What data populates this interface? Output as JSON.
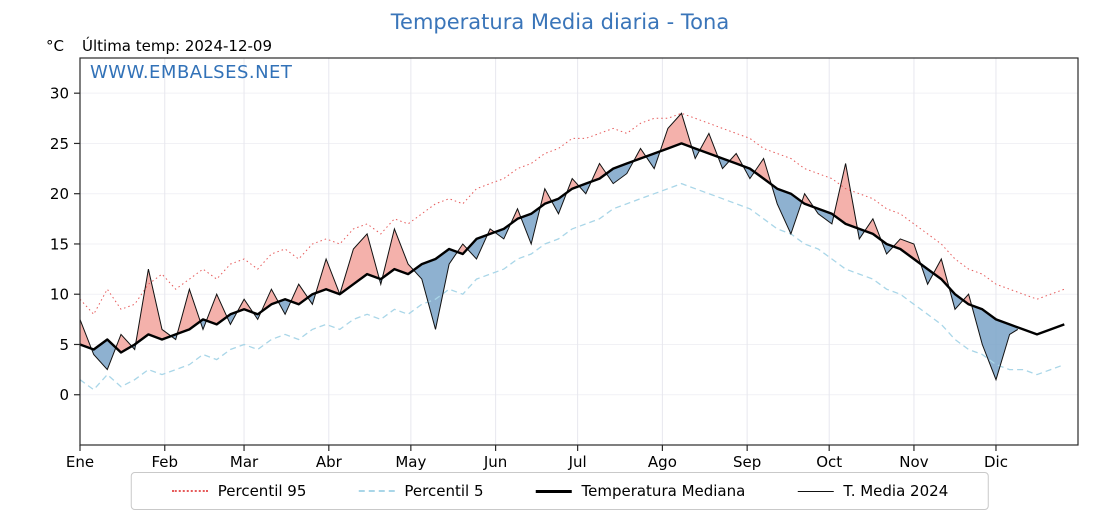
{
  "page": {
    "title": "Temperatura Media diaria - Tona",
    "unit_label": "°C",
    "last_temp_label": "Última temp: 2024-12-09",
    "watermark": "WWW.EMBALSES.NET"
  },
  "colors": {
    "title": "#3a75b9",
    "watermark": "#3272b8",
    "axis_text": "#000000",
    "grid_vertical": "#e7e7ee",
    "grid_horizontal": "#f1f1f5",
    "spine": "#2a2a2a",
    "fill_above": "#f2a39c",
    "fill_below": "#7aa3c8"
  },
  "chart_data": {
    "type": "line",
    "title": "Temperatura Media diaria - Tona",
    "ylabel": "°C",
    "legend_position": "bottom",
    "x_unit": "day_of_year",
    "xlim": [
      1,
      366
    ],
    "ylim": [
      -5,
      33.5
    ],
    "y_ticks": [
      0,
      5,
      10,
      15,
      20,
      25,
      30
    ],
    "months": [
      "Ene",
      "Feb",
      "Mar",
      "Abr",
      "May",
      "Jun",
      "Jul",
      "Ago",
      "Sep",
      "Oct",
      "Nov",
      "Dic"
    ],
    "month_start_days": [
      1,
      32,
      61,
      92,
      122,
      153,
      183,
      214,
      245,
      275,
      306,
      336
    ],
    "grid": true,
    "x_days": [
      1,
      6,
      11,
      16,
      21,
      26,
      31,
      36,
      41,
      46,
      51,
      56,
      61,
      66,
      71,
      76,
      81,
      86,
      91,
      96,
      101,
      106,
      111,
      116,
      121,
      126,
      131,
      136,
      141,
      146,
      151,
      156,
      161,
      166,
      171,
      176,
      181,
      186,
      191,
      196,
      201,
      206,
      211,
      216,
      221,
      226,
      231,
      236,
      241,
      246,
      251,
      256,
      261,
      266,
      271,
      276,
      281,
      286,
      291,
      296,
      301,
      306,
      311,
      316,
      321,
      326,
      331,
      336,
      341,
      346,
      351,
      356,
      361
    ],
    "series": [
      {
        "name": "Percentil 95",
        "color": "#e65a5a",
        "style": "dotted",
        "width": 1,
        "values": [
          9.5,
          8.0,
          10.5,
          8.5,
          9.0,
          11.0,
          12.0,
          10.5,
          11.5,
          12.5,
          11.5,
          13.0,
          13.5,
          12.5,
          14.0,
          14.5,
          13.5,
          15.0,
          15.5,
          15.0,
          16.5,
          17.0,
          16.0,
          17.5,
          17.0,
          18.0,
          19.0,
          19.5,
          19.0,
          20.5,
          21.0,
          21.5,
          22.5,
          23.0,
          24.0,
          24.5,
          25.5,
          25.5,
          26.0,
          26.5,
          26.0,
          27.0,
          27.5,
          27.5,
          28.0,
          27.5,
          27.0,
          26.5,
          26.0,
          25.5,
          24.5,
          24.0,
          23.5,
          22.5,
          22.0,
          21.5,
          20.5,
          20.0,
          19.5,
          18.5,
          18.0,
          17.0,
          16.0,
          15.0,
          13.5,
          12.5,
          12.0,
          11.0,
          10.5,
          10.0,
          9.5,
          10.0,
          10.5
        ]
      },
      {
        "name": "Percentil 5",
        "color": "#a9d6e8",
        "style": "dashed",
        "width": 1.3,
        "values": [
          1.5,
          0.5,
          2.0,
          0.8,
          1.5,
          2.5,
          2.0,
          2.5,
          3.0,
          4.0,
          3.5,
          4.5,
          5.0,
          4.5,
          5.5,
          6.0,
          5.5,
          6.5,
          7.0,
          6.5,
          7.5,
          8.0,
          7.5,
          8.5,
          8.0,
          9.0,
          9.5,
          10.5,
          10.0,
          11.5,
          12.0,
          12.5,
          13.5,
          14.0,
          15.0,
          15.5,
          16.5,
          17.0,
          17.5,
          18.5,
          19.0,
          19.5,
          20.0,
          20.5,
          21.0,
          20.5,
          20.0,
          19.5,
          19.0,
          18.5,
          17.5,
          16.5,
          16.0,
          15.0,
          14.5,
          13.5,
          12.5,
          12.0,
          11.5,
          10.5,
          10.0,
          9.0,
          8.0,
          7.0,
          5.5,
          4.5,
          4.0,
          3.0,
          2.5,
          2.5,
          2.0,
          2.5,
          3.0
        ]
      },
      {
        "name": "Temperatura Mediana",
        "color": "#000000",
        "style": "solid",
        "width": 2.4,
        "values": [
          5.0,
          4.5,
          5.5,
          4.2,
          5.0,
          6.0,
          5.5,
          6.0,
          6.5,
          7.5,
          7.0,
          8.0,
          8.5,
          8.0,
          9.0,
          9.5,
          9.0,
          10.0,
          10.5,
          10.0,
          11.0,
          12.0,
          11.5,
          12.5,
          12.0,
          13.0,
          13.5,
          14.5,
          14.0,
          15.5,
          16.0,
          16.5,
          17.5,
          18.0,
          19.0,
          19.5,
          20.5,
          21.0,
          21.5,
          22.5,
          23.0,
          23.5,
          24.0,
          24.5,
          25.0,
          24.5,
          24.0,
          23.5,
          23.0,
          22.5,
          21.5,
          20.5,
          20.0,
          19.0,
          18.5,
          18.0,
          17.0,
          16.5,
          16.0,
          15.0,
          14.5,
          13.5,
          12.5,
          11.5,
          10.0,
          9.0,
          8.5,
          7.5,
          7.0,
          6.5,
          6.0,
          6.5,
          7.0
        ]
      },
      {
        "name": "T. Media 2024",
        "color": "#111111",
        "style": "solid",
        "width": 1,
        "x_days": [
          1,
          6,
          11,
          16,
          21,
          26,
          31,
          36,
          41,
          46,
          51,
          56,
          61,
          66,
          71,
          76,
          81,
          86,
          91,
          96,
          101,
          106,
          111,
          116,
          121,
          126,
          131,
          136,
          141,
          146,
          151,
          156,
          161,
          166,
          171,
          176,
          181,
          186,
          191,
          196,
          201,
          206,
          211,
          216,
          221,
          226,
          231,
          236,
          241,
          246,
          251,
          256,
          261,
          266,
          271,
          276,
          281,
          286,
          291,
          296,
          301,
          306,
          311,
          316,
          321,
          326,
          331,
          336,
          341,
          344
        ],
        "values": [
          7.5,
          4.0,
          2.5,
          6.0,
          4.5,
          12.5,
          6.5,
          5.5,
          10.5,
          6.5,
          10.0,
          7.0,
          9.5,
          7.5,
          10.5,
          8.0,
          11.0,
          9.0,
          13.5,
          10.0,
          14.5,
          16.0,
          11.0,
          16.5,
          13.0,
          11.5,
          6.5,
          13.0,
          15.0,
          13.5,
          16.5,
          15.5,
          18.5,
          15.0,
          20.5,
          18.0,
          21.5,
          20.0,
          23.0,
          21.0,
          22.0,
          24.5,
          22.5,
          26.5,
          28.0,
          23.5,
          26.0,
          22.5,
          24.0,
          21.5,
          23.5,
          19.0,
          16.0,
          20.0,
          18.0,
          17.0,
          23.0,
          15.5,
          17.5,
          14.0,
          15.5,
          15.0,
          11.0,
          13.5,
          8.5,
          10.0,
          5.0,
          1.5,
          6.0,
          6.5
        ]
      }
    ]
  }
}
